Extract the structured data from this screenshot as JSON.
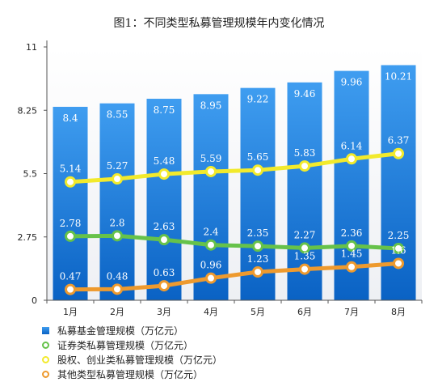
{
  "chart_data": {
    "type": "bar+line",
    "title": "图1：不同类型私募管理规模年内变化情况",
    "categories": [
      "1月",
      "2月",
      "3月",
      "4月",
      "5月",
      "6月",
      "7月",
      "8月"
    ],
    "yticks": [
      "0",
      "2.75",
      "5.5",
      "8.25",
      "11"
    ],
    "ylim": [
      0,
      11
    ],
    "grid": false,
    "legend_position": "bottom-left",
    "series": [
      {
        "name": "私募基金管理规模（万亿元）",
        "kind": "bar",
        "color": "#1a78dc",
        "values": [
          8.4,
          8.55,
          8.75,
          8.95,
          9.22,
          9.46,
          9.96,
          10.21
        ],
        "labels": [
          "8.4",
          "8.55",
          "8.75",
          "8.95",
          "9.22",
          "9.46",
          "9.96",
          "10.21"
        ]
      },
      {
        "name": "证券类私募管理规模（万亿元）",
        "kind": "line",
        "color": "#66c24a",
        "values": [
          2.78,
          2.8,
          2.63,
          2.4,
          2.35,
          2.27,
          2.36,
          2.25
        ],
        "labels": [
          "2.78",
          "2.8",
          "2.63",
          "2.4",
          "2.35",
          "2.27",
          "2.36",
          "2.25"
        ]
      },
      {
        "name": "股权、创业类私募管理规模（万亿元）",
        "kind": "line",
        "color": "#f2ea2c",
        "values": [
          5.14,
          5.27,
          5.48,
          5.59,
          5.65,
          5.83,
          6.14,
          6.37
        ],
        "labels": [
          "5.14",
          "5.27",
          "5.48",
          "5.59",
          "5.65",
          "5.83",
          "6.14",
          "6.37"
        ]
      },
      {
        "name": "其他类型私募管理规模（万亿元）",
        "kind": "line",
        "color": "#ee9a2e",
        "values": [
          0.47,
          0.48,
          0.63,
          0.96,
          1.23,
          1.35,
          1.45,
          1.6
        ],
        "labels": [
          "0.47",
          "0.48",
          "0.63",
          "0.96",
          "1.23",
          "1.35",
          "1.45",
          "1.6"
        ]
      }
    ]
  }
}
